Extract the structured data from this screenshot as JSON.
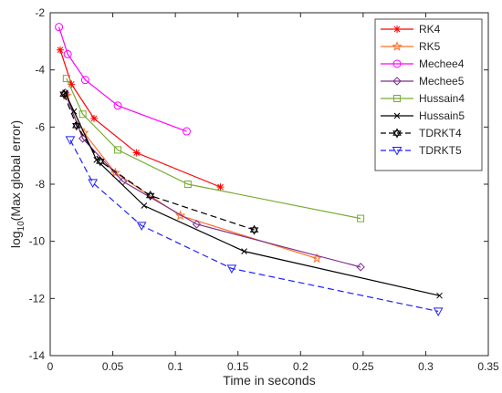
{
  "chart_data": {
    "type": "line",
    "title": "",
    "xlabel": "Time in seconds",
    "ylabel_base": "log",
    "ylabel_sub": "10",
    "ylabel_rest": "(Max global error)",
    "xlim": [
      0,
      0.35
    ],
    "ylim": [
      -14,
      -2
    ],
    "xticks": [
      0,
      0.05,
      0.1,
      0.15,
      0.2,
      0.25,
      0.3,
      0.35
    ],
    "xtick_labels": [
      "0",
      "0.05",
      "0.1",
      "0.15",
      "0.2",
      "0.25",
      "0.3",
      "0.35"
    ],
    "yticks": [
      -14,
      -12,
      -10,
      -8,
      -6,
      -4,
      -2
    ],
    "ytick_labels": [
      "-14",
      "-12",
      "-10",
      "-8",
      "-6",
      "-4",
      "-2"
    ],
    "grid": false,
    "legend_position": "top-right",
    "series": [
      {
        "name": "RK4",
        "color": "#ff0000",
        "marker": "asterisk",
        "dash": "solid",
        "x": [
          0.008,
          0.017,
          0.035,
          0.069,
          0.136
        ],
        "y": [
          -3.3,
          -4.5,
          -5.7,
          -6.9,
          -8.1
        ]
      },
      {
        "name": "RK5",
        "color": "#ff6e28",
        "marker": "star",
        "dash": "solid",
        "x": [
          0.013,
          0.027,
          0.052,
          0.104,
          0.213
        ],
        "y": [
          -4.9,
          -6.2,
          -7.6,
          -9.1,
          -10.6
        ]
      },
      {
        "name": "Mechee4",
        "color": "#ff00ff",
        "marker": "circle",
        "dash": "solid",
        "x": [
          0.007,
          0.014,
          0.028,
          0.054,
          0.109
        ],
        "y": [
          -2.5,
          -3.45,
          -4.35,
          -5.25,
          -6.15
        ]
      },
      {
        "name": "Mechee5",
        "color": "#7e2f8e",
        "marker": "diamond",
        "dash": "solid",
        "x": [
          0.012,
          0.026,
          0.058,
          0.117,
          0.248
        ],
        "y": [
          -4.8,
          -6.4,
          -7.9,
          -9.4,
          -10.9
        ]
      },
      {
        "name": "Hussain4",
        "color": "#77ac30",
        "marker": "square",
        "dash": "solid",
        "x": [
          0.013,
          0.026,
          0.054,
          0.11,
          0.248
        ],
        "y": [
          -4.3,
          -5.55,
          -6.8,
          -8.0,
          -9.2
        ]
      },
      {
        "name": "Hussain5",
        "color": "#000000",
        "marker": "x",
        "dash": "solid",
        "x": [
          0.012,
          0.019,
          0.037,
          0.075,
          0.155,
          0.311
        ],
        "y": [
          -4.8,
          -5.45,
          -7.15,
          -8.75,
          -10.35,
          -11.9
        ]
      },
      {
        "name": "TDRKT4",
        "color": "#000000",
        "marker": "hexagram",
        "dash": "dashed",
        "x": [
          0.011,
          0.021,
          0.04,
          0.08,
          0.163
        ],
        "y": [
          -4.85,
          -5.95,
          -7.2,
          -8.4,
          -9.6
        ]
      },
      {
        "name": "TDRKT5",
        "color": "#1f1fff",
        "marker": "triangle-down",
        "dash": "dashed",
        "x": [
          0.016,
          0.034,
          0.073,
          0.145,
          0.31
        ],
        "y": [
          -6.45,
          -7.95,
          -9.45,
          -10.95,
          -12.45
        ]
      }
    ]
  }
}
